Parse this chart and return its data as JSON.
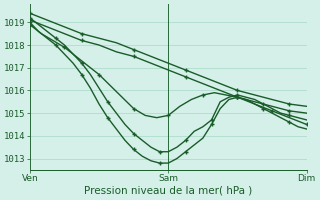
{
  "background_color": "#d4f0e8",
  "grid_color": "#a8d8c8",
  "line_color": "#1a5c2a",
  "xlabel": "Pression niveau de la mer( hPa )",
  "xtick_labels": [
    "Ven",
    "Sam",
    "Dim"
  ],
  "ylim": [
    1012.5,
    1019.8
  ],
  "yticks": [
    1013,
    1014,
    1015,
    1016,
    1017,
    1018,
    1019
  ],
  "series": [
    {
      "x": [
        0,
        6,
        12,
        18,
        24,
        30,
        36,
        42,
        48,
        54,
        60,
        66,
        72,
        78,
        84,
        90,
        96
      ],
      "y": [
        1019.4,
        1019.1,
        1018.8,
        1018.5,
        1018.3,
        1018.1,
        1017.8,
        1017.5,
        1017.2,
        1016.9,
        1016.6,
        1016.3,
        1016.0,
        1015.8,
        1015.6,
        1015.4,
        1015.3
      ]
    },
    {
      "x": [
        0,
        6,
        12,
        18,
        24,
        30,
        36,
        42,
        48,
        54,
        60,
        66,
        72,
        78,
        84,
        90,
        96
      ],
      "y": [
        1019.1,
        1018.8,
        1018.5,
        1018.2,
        1018.0,
        1017.7,
        1017.5,
        1017.2,
        1016.9,
        1016.6,
        1016.3,
        1016.0,
        1015.7,
        1015.5,
        1015.3,
        1015.1,
        1015.0
      ]
    },
    {
      "x": [
        0,
        4,
        8,
        12,
        16,
        20,
        24,
        28,
        32,
        36,
        40,
        44,
        48,
        52,
        56,
        60,
        64,
        68,
        72,
        76,
        80,
        84,
        88,
        92,
        96
      ],
      "y": [
        1018.9,
        1018.5,
        1018.2,
        1017.9,
        1017.5,
        1017.1,
        1016.7,
        1016.2,
        1015.7,
        1015.2,
        1014.9,
        1014.8,
        1014.9,
        1015.3,
        1015.6,
        1015.8,
        1015.9,
        1015.8,
        1015.7,
        1015.5,
        1015.3,
        1015.1,
        1014.9,
        1014.7,
        1014.5
      ]
    },
    {
      "x": [
        0,
        3,
        6,
        9,
        12,
        15,
        18,
        21,
        24,
        27,
        30,
        33,
        36,
        39,
        42,
        45,
        48,
        51,
        54,
        57,
        60,
        63,
        66,
        69,
        72,
        75,
        78,
        81,
        84,
        87,
        90,
        93,
        96
      ],
      "y": [
        1019.2,
        1018.9,
        1018.6,
        1018.3,
        1018.0,
        1017.6,
        1017.2,
        1016.7,
        1016.1,
        1015.5,
        1015.0,
        1014.5,
        1014.1,
        1013.8,
        1013.5,
        1013.3,
        1013.3,
        1013.5,
        1013.8,
        1014.2,
        1014.4,
        1014.7,
        1015.5,
        1015.7,
        1015.8,
        1015.7,
        1015.6,
        1015.4,
        1015.2,
        1015.0,
        1014.9,
        1014.8,
        1014.7
      ]
    },
    {
      "x": [
        0,
        3,
        6,
        9,
        12,
        15,
        18,
        21,
        24,
        27,
        30,
        33,
        36,
        39,
        42,
        45,
        48,
        51,
        54,
        57,
        60,
        63,
        66,
        69,
        72,
        75,
        78,
        81,
        84,
        87,
        90,
        93,
        96
      ],
      "y": [
        1019.0,
        1018.6,
        1018.3,
        1018.0,
        1017.6,
        1017.2,
        1016.7,
        1016.1,
        1015.4,
        1014.8,
        1014.3,
        1013.8,
        1013.4,
        1013.1,
        1012.9,
        1012.8,
        1012.8,
        1013.0,
        1013.3,
        1013.6,
        1013.9,
        1014.5,
        1015.2,
        1015.6,
        1015.7,
        1015.6,
        1015.4,
        1015.2,
        1015.0,
        1014.8,
        1014.6,
        1014.4,
        1014.3
      ]
    }
  ],
  "marker_interval": 3,
  "linewidth": 1.0,
  "markersize": 3.0,
  "tick_fontsize": 6.5,
  "label_fontsize": 7.5
}
